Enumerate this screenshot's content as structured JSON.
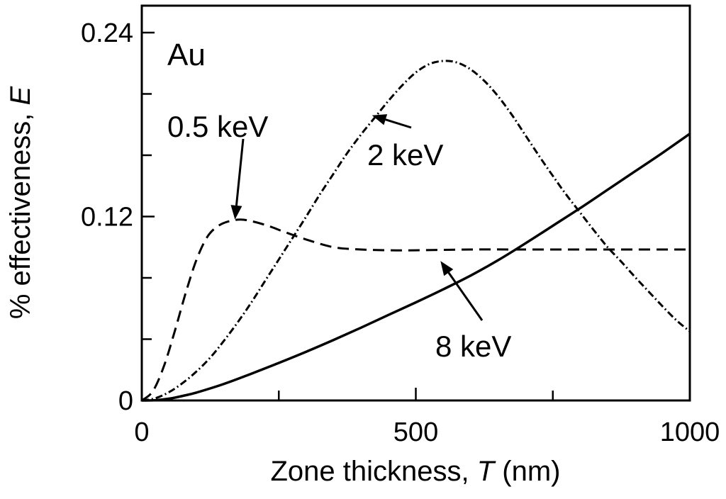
{
  "chart_data": {
    "type": "line",
    "title": "",
    "xlabel_main": "Zone thickness, ",
    "xlabel_var": "T",
    "xlabel_unit": " (nm)",
    "ylabel_main": "% effectiveness, ",
    "ylabel_var": "E",
    "xlim": [
      0,
      1000
    ],
    "ylim": [
      0,
      0.24
    ],
    "x_major_ticks": [
      0,
      500,
      1000
    ],
    "x_tick_labels": [
      "0",
      "500",
      "1000"
    ],
    "x_minor_ticks": [
      250,
      750
    ],
    "y_major_ticks": [
      0,
      0.12,
      0.24
    ],
    "y_tick_labels": [
      "0",
      "0.12",
      "0.24"
    ],
    "y_minor_ticks": [
      0.04,
      0.08,
      0.16,
      0.2
    ],
    "grid": false,
    "panel_label": "Au",
    "series": [
      {
        "name": "0.5 keV",
        "style": "dashed",
        "x": [
          0,
          20,
          40,
          60,
          80,
          100,
          120,
          140,
          160,
          180,
          200,
          230,
          260,
          300,
          350,
          400,
          450,
          500,
          600,
          700,
          800,
          900,
          1000
        ],
        "y": [
          0,
          0.006,
          0.022,
          0.045,
          0.07,
          0.092,
          0.107,
          0.114,
          0.117,
          0.118,
          0.117,
          0.114,
          0.11,
          0.105,
          0.1,
          0.0985,
          0.098,
          0.098,
          0.0985,
          0.0985,
          0.0985,
          0.0985,
          0.0985
        ]
      },
      {
        "name": "2 keV",
        "style": "dash-dot",
        "x": [
          0,
          25,
          50,
          75,
          100,
          125,
          150,
          175,
          200,
          225,
          250,
          275,
          300,
          325,
          350,
          375,
          400,
          425,
          450,
          475,
          500,
          525,
          550,
          575,
          600,
          625,
          650,
          675,
          700,
          725,
          750,
          775,
          800,
          825,
          850,
          875,
          900,
          925,
          950,
          975,
          1000
        ],
        "y": [
          0,
          0.0015,
          0.0055,
          0.0115,
          0.019,
          0.028,
          0.039,
          0.051,
          0.064,
          0.078,
          0.092,
          0.106,
          0.12,
          0.1345,
          0.148,
          0.1615,
          0.1735,
          0.1845,
          0.1955,
          0.2055,
          0.214,
          0.2195,
          0.2215,
          0.2205,
          0.216,
          0.2085,
          0.1985,
          0.1865,
          0.173,
          0.1595,
          0.1465,
          0.134,
          0.1225,
          0.111,
          0.1,
          0.0905,
          0.0805,
          0.071,
          0.0615,
          0.0525,
          0.045
        ]
      },
      {
        "name": "8 keV",
        "style": "solid",
        "x": [
          0,
          25,
          50,
          75,
          100,
          150,
          200,
          250,
          300,
          350,
          400,
          450,
          500,
          550,
          600,
          650,
          700,
          750,
          800,
          850,
          900,
          950,
          1000
        ],
        "y": [
          0,
          0.0002,
          0.0012,
          0.003,
          0.0052,
          0.0108,
          0.0175,
          0.0245,
          0.0318,
          0.0395,
          0.0475,
          0.0558,
          0.064,
          0.0725,
          0.0815,
          0.0915,
          0.1025,
          0.114,
          0.1255,
          0.1375,
          0.1495,
          0.1615,
          0.174
        ]
      }
    ],
    "annotations": [
      {
        "text": "0.5 keV",
        "point": [
          170,
          0.118
        ]
      },
      {
        "text": "2 keV",
        "point": [
          420,
          0.186
        ]
      },
      {
        "text": "8 keV",
        "point": [
          545,
          0.091
        ]
      }
    ]
  }
}
